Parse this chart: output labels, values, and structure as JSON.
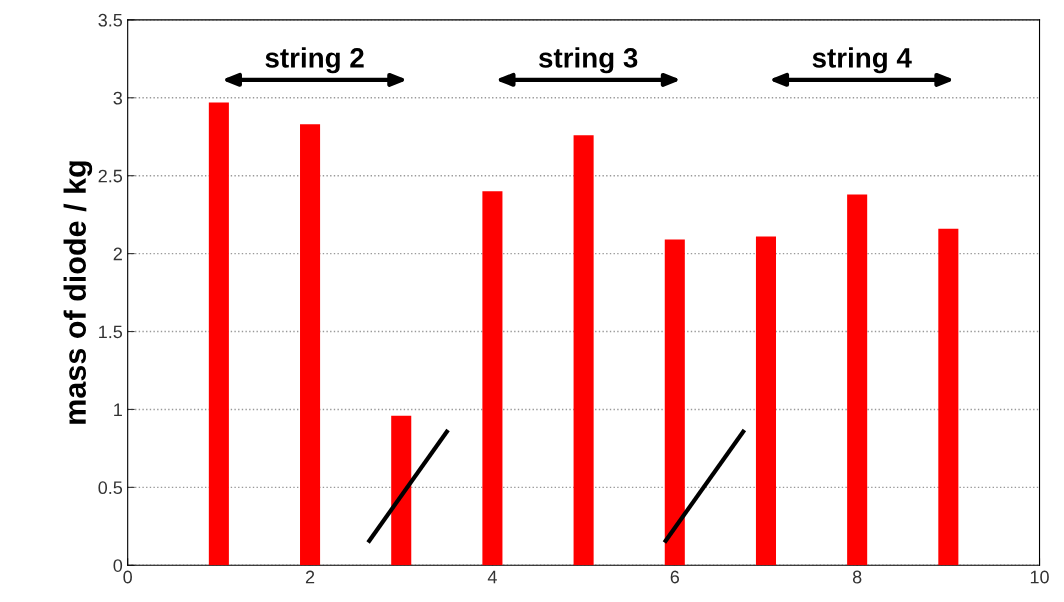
{
  "chart_data": {
    "type": "bar",
    "x": [
      1,
      2,
      3,
      4,
      5,
      6,
      7,
      8,
      9
    ],
    "values": [
      2.97,
      2.83,
      0.96,
      2.4,
      2.76,
      2.09,
      2.11,
      2.38,
      2.16
    ],
    "color": "#ff0000",
    "ylabel": "mass of diode / kg",
    "xlim": [
      0,
      10
    ],
    "xticks": [
      0,
      2,
      4,
      6,
      8,
      10
    ],
    "ylim": [
      0,
      3.5
    ],
    "yticks": [
      0,
      0.5,
      1,
      1.5,
      2,
      2.5,
      3,
      3.5
    ],
    "grid": "y",
    "legend": false,
    "annotations": [
      "string 2",
      "string 3",
      "string 4"
    ]
  }
}
